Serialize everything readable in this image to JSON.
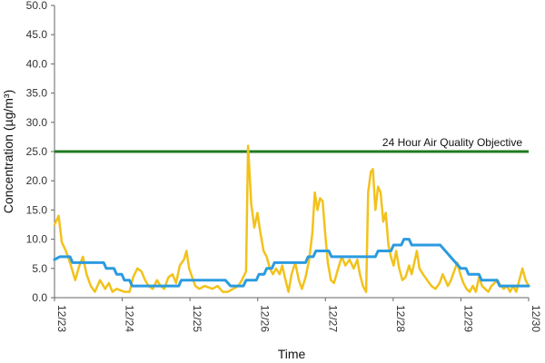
{
  "chart_data": {
    "type": "line",
    "title": "",
    "xlabel": "Time",
    "ylabel": "Concentration (µg/m³)",
    "ylim": [
      0,
      50
    ],
    "y_ticks": [
      "0.0",
      "5.0",
      "10.0",
      "15.0",
      "20.0",
      "25.0",
      "30.0",
      "35.0",
      "40.0",
      "45.0",
      "50.0"
    ],
    "x_ticks": [
      "12/23",
      "12/24",
      "12/25",
      "12/26",
      "12/27",
      "12/28",
      "12/29",
      "12/30"
    ],
    "grid": false,
    "reference_line": {
      "label": "24 Hour Air Quality Objective",
      "value": 25.0,
      "color": "#1f7a1f"
    },
    "series": [
      {
        "color": "#f2c21b",
        "points": [
          [
            0.0,
            12.5
          ],
          [
            0.08,
            14.0
          ],
          [
            0.14,
            9.5
          ],
          [
            0.22,
            8.0
          ],
          [
            0.3,
            6.0
          ],
          [
            0.4,
            3.0
          ],
          [
            0.48,
            5.5
          ],
          [
            0.55,
            7.0
          ],
          [
            0.62,
            4.0
          ],
          [
            0.7,
            2.0
          ],
          [
            0.78,
            1.0
          ],
          [
            0.88,
            3.0
          ],
          [
            0.98,
            1.5
          ],
          [
            1.05,
            2.5
          ],
          [
            1.12,
            1.0
          ],
          [
            1.2,
            1.5
          ],
          [
            1.35,
            1.0
          ],
          [
            1.45,
            1.0
          ],
          [
            1.52,
            3.5
          ],
          [
            1.6,
            5.0
          ],
          [
            1.68,
            4.5
          ],
          [
            1.75,
            3.0
          ],
          [
            1.82,
            2.0
          ],
          [
            1.9,
            1.5
          ],
          [
            1.98,
            3.0
          ],
          [
            2.05,
            2.0
          ],
          [
            2.12,
            1.5
          ],
          [
            2.2,
            3.5
          ],
          [
            2.28,
            4.0
          ],
          [
            2.35,
            2.5
          ],
          [
            2.42,
            5.5
          ],
          [
            2.5,
            6.5
          ],
          [
            2.55,
            8.0
          ],
          [
            2.6,
            5.0
          ],
          [
            2.66,
            3.5
          ],
          [
            2.72,
            2.0
          ],
          [
            2.8,
            1.5
          ],
          [
            2.9,
            2.0
          ],
          [
            3.05,
            1.5
          ],
          [
            3.15,
            2.0
          ],
          [
            3.25,
            1.0
          ],
          [
            3.35,
            1.0
          ],
          [
            3.45,
            1.5
          ],
          [
            3.55,
            2.0
          ],
          [
            3.62,
            3.0
          ],
          [
            3.7,
            4.5
          ],
          [
            3.74,
            26.0
          ],
          [
            3.8,
            16.0
          ],
          [
            3.86,
            12.0
          ],
          [
            3.92,
            14.5
          ],
          [
            3.98,
            11.0
          ],
          [
            4.04,
            8.0
          ],
          [
            4.1,
            7.0
          ],
          [
            4.16,
            5.0
          ],
          [
            4.22,
            4.0
          ],
          [
            4.28,
            5.0
          ],
          [
            4.35,
            4.0
          ],
          [
            4.4,
            5.5
          ],
          [
            4.45,
            3.5
          ],
          [
            4.52,
            1.0
          ],
          [
            4.58,
            4.0
          ],
          [
            4.65,
            6.0
          ],
          [
            4.72,
            3.0
          ],
          [
            4.78,
            1.5
          ],
          [
            4.85,
            3.5
          ],
          [
            4.92,
            6.5
          ],
          [
            4.98,
            11.0
          ],
          [
            5.03,
            18.0
          ],
          [
            5.08,
            15.0
          ],
          [
            5.13,
            17.0
          ],
          [
            5.18,
            16.5
          ],
          [
            5.23,
            11.0
          ],
          [
            5.28,
            6.0
          ],
          [
            5.34,
            3.0
          ],
          [
            5.4,
            2.5
          ],
          [
            5.48,
            5.0
          ],
          [
            5.55,
            7.0
          ],
          [
            5.62,
            5.5
          ],
          [
            5.7,
            6.5
          ],
          [
            5.78,
            5.0
          ],
          [
            5.85,
            6.5
          ],
          [
            5.9,
            4.0
          ],
          [
            5.96,
            2.0
          ],
          [
            6.02,
            1.0
          ],
          [
            6.06,
            18.0
          ],
          [
            6.11,
            21.5
          ],
          [
            6.15,
            22.0
          ],
          [
            6.2,
            15.0
          ],
          [
            6.25,
            19.0
          ],
          [
            6.3,
            18.0
          ],
          [
            6.35,
            13.0
          ],
          [
            6.4,
            14.5
          ],
          [
            6.45,
            9.0
          ],
          [
            6.5,
            7.0
          ],
          [
            6.55,
            5.5
          ],
          [
            6.6,
            8.0
          ],
          [
            6.66,
            5.0
          ],
          [
            6.72,
            3.0
          ],
          [
            6.78,
            3.5
          ],
          [
            6.85,
            5.5
          ],
          [
            6.9,
            4.0
          ],
          [
            6.95,
            6.0
          ],
          [
            7.0,
            8.0
          ],
          [
            7.05,
            5.0
          ],
          [
            7.12,
            4.0
          ],
          [
            7.2,
            3.0
          ],
          [
            7.28,
            2.0
          ],
          [
            7.36,
            1.5
          ],
          [
            7.44,
            2.5
          ],
          [
            7.5,
            4.0
          ],
          [
            7.55,
            3.0
          ],
          [
            7.6,
            2.0
          ],
          [
            7.66,
            3.0
          ],
          [
            7.72,
            4.5
          ],
          [
            7.78,
            6.0
          ],
          [
            7.84,
            4.0
          ],
          [
            7.9,
            2.5
          ],
          [
            7.96,
            1.5
          ],
          [
            8.02,
            1.0
          ],
          [
            8.08,
            2.0
          ],
          [
            8.14,
            1.0
          ],
          [
            8.2,
            3.5
          ],
          [
            8.26,
            2.0
          ],
          [
            8.32,
            1.5
          ],
          [
            8.38,
            1.0
          ],
          [
            8.44,
            2.0
          ],
          [
            8.5,
            2.5
          ],
          [
            8.56,
            3.0
          ],
          [
            8.62,
            2.0
          ],
          [
            8.68,
            1.5
          ],
          [
            8.74,
            2.0
          ],
          [
            8.8,
            1.0
          ],
          [
            8.86,
            2.0
          ],
          [
            8.92,
            1.0
          ],
          [
            8.98,
            3.0
          ],
          [
            9.04,
            5.0
          ],
          [
            9.1,
            3.0
          ],
          [
            9.16,
            2.0
          ]
        ]
      },
      {
        "color": "#2b9be0",
        "points": [
          [
            0.0,
            6.5
          ],
          [
            0.1,
            7.0
          ],
          [
            0.3,
            7.0
          ],
          [
            0.35,
            6.0
          ],
          [
            0.55,
            6.0
          ],
          [
            0.75,
            6.0
          ],
          [
            0.95,
            6.0
          ],
          [
            1.0,
            5.0
          ],
          [
            1.15,
            5.0
          ],
          [
            1.2,
            4.0
          ],
          [
            1.3,
            4.0
          ],
          [
            1.35,
            3.0
          ],
          [
            1.45,
            3.0
          ],
          [
            1.5,
            2.0
          ],
          [
            1.75,
            2.0
          ],
          [
            2.0,
            2.0
          ],
          [
            2.4,
            2.0
          ],
          [
            2.45,
            3.0
          ],
          [
            2.75,
            3.0
          ],
          [
            3.0,
            3.0
          ],
          [
            3.3,
            3.0
          ],
          [
            3.4,
            2.0
          ],
          [
            3.65,
            2.0
          ],
          [
            3.7,
            3.0
          ],
          [
            3.9,
            3.0
          ],
          [
            3.95,
            4.0
          ],
          [
            4.05,
            4.0
          ],
          [
            4.1,
            5.0
          ],
          [
            4.2,
            5.0
          ],
          [
            4.25,
            6.0
          ],
          [
            4.85,
            6.0
          ],
          [
            4.9,
            7.0
          ],
          [
            5.0,
            7.0
          ],
          [
            5.05,
            8.0
          ],
          [
            5.3,
            8.0
          ],
          [
            5.35,
            7.0
          ],
          [
            5.85,
            7.0
          ],
          [
            6.2,
            7.0
          ],
          [
            6.25,
            8.0
          ],
          [
            6.5,
            8.0
          ],
          [
            6.55,
            9.0
          ],
          [
            6.7,
            9.0
          ],
          [
            6.75,
            10.0
          ],
          [
            6.85,
            10.0
          ],
          [
            6.9,
            9.0
          ],
          [
            7.45,
            9.0
          ],
          [
            7.55,
            8.0
          ],
          [
            7.65,
            7.0
          ],
          [
            7.75,
            6.0
          ],
          [
            7.85,
            5.0
          ],
          [
            7.95,
            5.0
          ],
          [
            8.0,
            4.0
          ],
          [
            8.2,
            4.0
          ],
          [
            8.25,
            3.0
          ],
          [
            8.55,
            3.0
          ],
          [
            8.6,
            2.0
          ],
          [
            9.16,
            2.0
          ]
        ]
      }
    ],
    "x_domain": [
      0,
      9.16
    ]
  }
}
